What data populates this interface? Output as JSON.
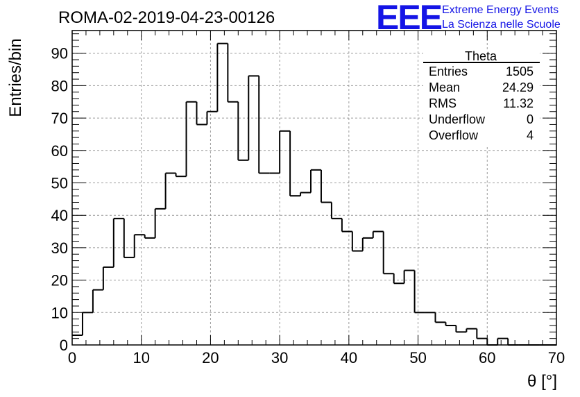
{
  "title": "ROMA-02-2019-04-23-00126",
  "logo": {
    "mark": "EEE",
    "line1": "Extreme Energy Events",
    "line2": "La Scienza nelle Scuole"
  },
  "stats": {
    "name": "Theta",
    "rows": [
      {
        "label": "Entries",
        "value": "1505"
      },
      {
        "label": "Mean",
        "value": "24.29"
      },
      {
        "label": "RMS",
        "value": "11.32"
      },
      {
        "label": "Underflow",
        "value": "0"
      },
      {
        "label": "Overflow",
        "value": "4"
      }
    ]
  },
  "chart_data": {
    "type": "bar",
    "histogram": true,
    "title": "ROMA-02-2019-04-23-00126",
    "xlabel": "θ [°]",
    "ylabel": "Entries/bin",
    "xlim": [
      0,
      70
    ],
    "ylim": [
      0,
      97
    ],
    "bin_width": 1.5,
    "bin_edges_start": 0,
    "x_ticks": [
      0,
      10,
      20,
      30,
      40,
      50,
      60,
      70
    ],
    "y_ticks": [
      0,
      10,
      20,
      30,
      40,
      50,
      60,
      70,
      80,
      90
    ],
    "grid": true,
    "values": [
      3,
      10,
      17,
      24,
      39,
      27,
      34,
      33,
      42,
      53,
      52,
      75,
      68,
      72,
      93,
      75,
      57,
      83,
      53,
      53,
      66,
      46,
      47,
      54,
      44,
      39,
      35,
      29,
      33,
      35,
      22,
      19,
      23,
      10,
      10,
      7,
      6,
      4,
      5,
      2,
      0,
      2,
      0,
      0,
      0,
      0,
      0
    ]
  },
  "colors": {
    "line": "#000000",
    "grid": "#9a9a9a",
    "logo": "#1414e6"
  }
}
